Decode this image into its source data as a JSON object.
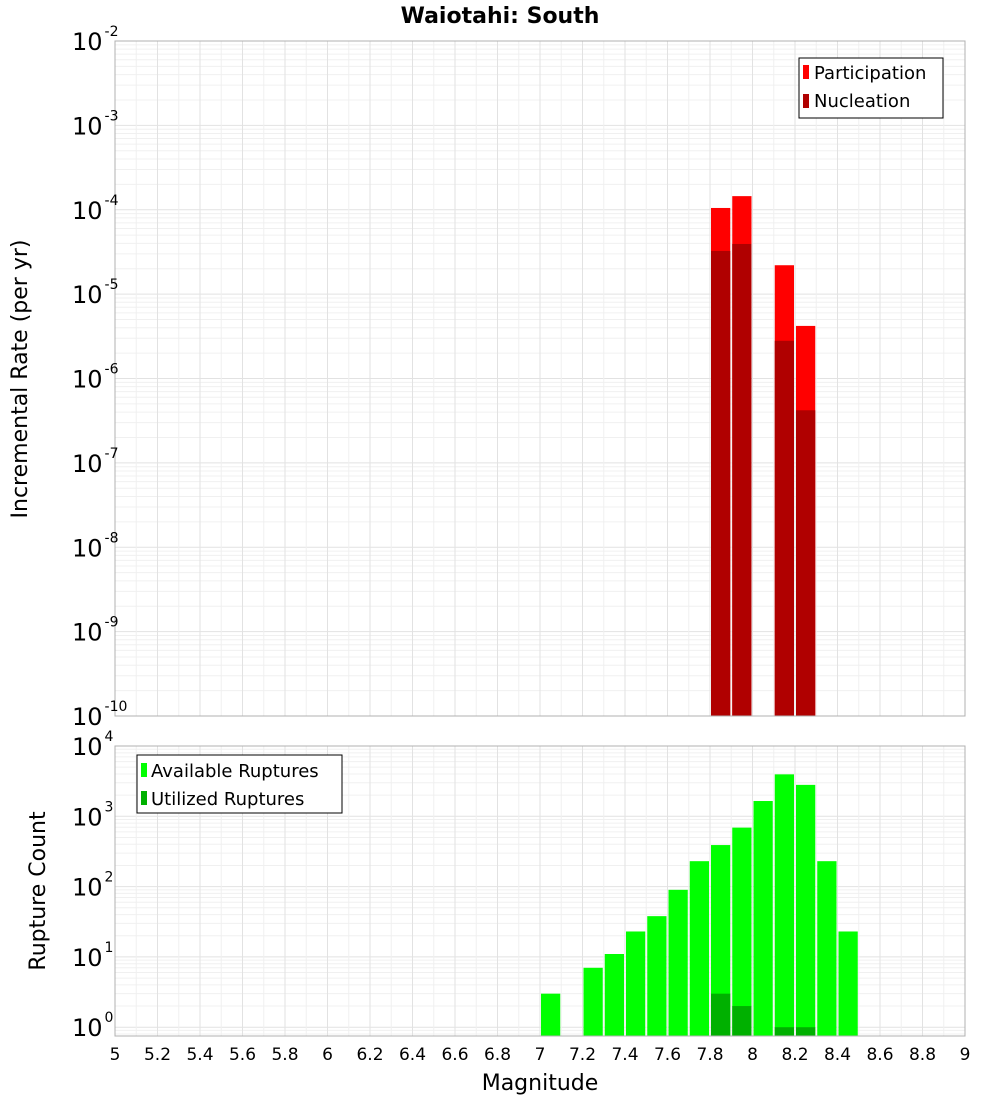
{
  "chart_data": [
    {
      "type": "bar",
      "title": "Waiotahi: South",
      "ylabel": "Incremental Rate (per yr)",
      "xlabel": "",
      "xlim": [
        5,
        9
      ],
      "yscale": "log",
      "ylim": [
        1e-10,
        0.01
      ],
      "ytick_exponents": [
        "-2",
        "-3",
        "-4",
        "-5",
        "-6",
        "-7",
        "-8",
        "-9",
        "-10"
      ],
      "ytick_base": "10",
      "bin_width": 0.1,
      "legend_position": "top-right",
      "series": [
        {
          "name": "Participation",
          "color": "#ff0000",
          "x": [
            7.85,
            7.95,
            8.15,
            8.25
          ],
          "values": [
            0.000105,
            0.000145,
            2.2e-05,
            4.2e-06
          ]
        },
        {
          "name": "Nucleation",
          "color": "#b00000",
          "x": [
            7.85,
            7.95,
            8.15,
            8.25
          ],
          "values": [
            3.25e-05,
            3.93e-05,
            2.8e-06,
            4.2e-07
          ]
        }
      ]
    },
    {
      "type": "bar",
      "title": "",
      "ylabel": "Rupture Count",
      "xlabel": "Magnitude",
      "xlim": [
        5,
        9
      ],
      "yscale": "log",
      "ylim": [
        0.75,
        10000
      ],
      "ytick_exponents": [
        "4",
        "3",
        "2",
        "1",
        "0"
      ],
      "ytick_base": "10",
      "xtick_labels": [
        "5",
        "5.2",
        "5.4",
        "5.6",
        "5.8",
        "6",
        "6.2",
        "6.4",
        "6.6",
        "6.8",
        "7",
        "7.2",
        "7.4",
        "7.6",
        "7.8",
        "8",
        "8.2",
        "8.4",
        "8.6",
        "8.8",
        "9"
      ],
      "bin_width": 0.1,
      "legend_position": "top-left",
      "series": [
        {
          "name": "Available Ruptures",
          "color": "#00ff00",
          "x": [
            7.05,
            7.25,
            7.35,
            7.45,
            7.55,
            7.65,
            7.75,
            7.85,
            7.95,
            8.05,
            8.15,
            8.25,
            8.35,
            8.45
          ],
          "values": [
            3,
            7,
            11,
            23,
            38,
            90,
            230,
            390,
            690,
            1650,
            3950,
            2800,
            230,
            23
          ]
        },
        {
          "name": "Utilized Ruptures",
          "color": "#00b000",
          "x": [
            7.85,
            7.95,
            8.15,
            8.25
          ],
          "values": [
            3,
            2,
            1,
            1
          ]
        }
      ]
    }
  ]
}
